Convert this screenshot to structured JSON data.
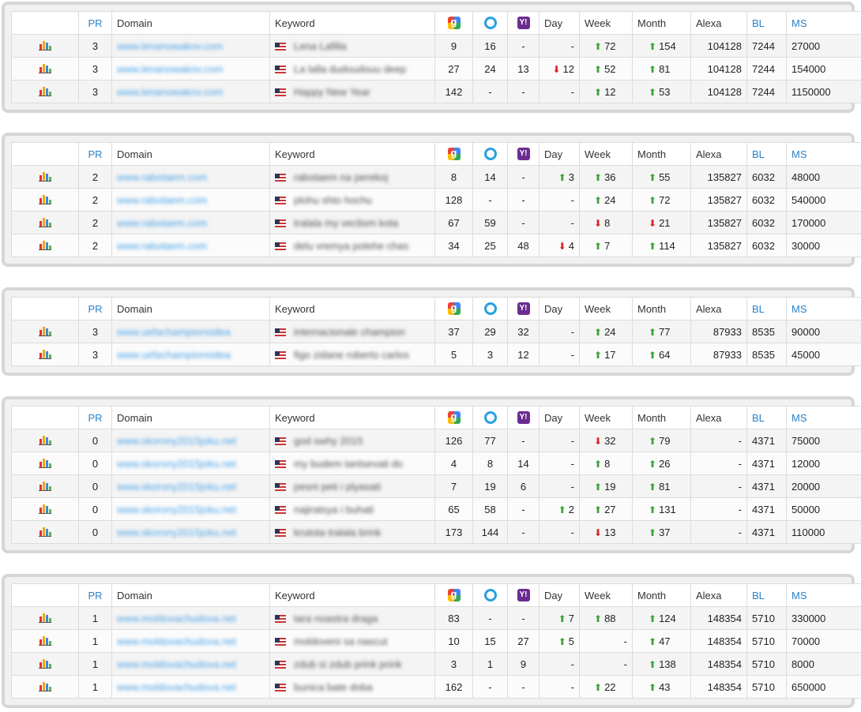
{
  "headers": [
    "",
    "PR",
    "Domain",
    "Keyword",
    "",
    "",
    "",
    "Day",
    "Week",
    "Month",
    "Alexa",
    "BL",
    "MS"
  ],
  "colors": {
    "up": "#3aa335",
    "down": "#d22222",
    "link": "#2a82c8"
  },
  "icons": {
    "google": "google-icon",
    "bing": "bing-icon",
    "yahoo": "yahoo-icon",
    "chart": "bar-chart-icon",
    "flag": "us-flag-icon"
  },
  "groups": [
    {
      "rows": [
        {
          "pr": "3",
          "domain": "www.lenanowakov.com",
          "keyword": "Lena Lafilla",
          "g": "9",
          "b": "16",
          "y": "-",
          "day": "-",
          "day_dir": "",
          "week": "72",
          "week_dir": "up",
          "month": "154",
          "month_dir": "up",
          "alexa": "104128",
          "bl": "7244",
          "ms": "27000"
        },
        {
          "pr": "3",
          "domain": "www.lenanowakov.com",
          "keyword": "La lalla dudoudouu deep",
          "g": "27",
          "b": "24",
          "y": "13",
          "day": "12",
          "day_dir": "down",
          "week": "52",
          "week_dir": "up",
          "month": "81",
          "month_dir": "up",
          "alexa": "104128",
          "bl": "7244",
          "ms": "154000"
        },
        {
          "pr": "3",
          "domain": "www.lenanowakov.com",
          "keyword": "Happy New Year",
          "g": "142",
          "b": "-",
          "y": "-",
          "day": "-",
          "day_dir": "",
          "week": "12",
          "week_dir": "up",
          "month": "53",
          "month_dir": "up",
          "alexa": "104128",
          "bl": "7244",
          "ms": "1150000"
        }
      ]
    },
    {
      "rows": [
        {
          "pr": "2",
          "domain": "www.rabotaem.com",
          "keyword": "rabotaem na perekoj",
          "g": "8",
          "b": "14",
          "y": "-",
          "day": "3",
          "day_dir": "up",
          "week": "36",
          "week_dir": "up",
          "month": "55",
          "month_dir": "up",
          "alexa": "135827",
          "bl": "6032",
          "ms": "48000"
        },
        {
          "pr": "2",
          "domain": "www.rabotaem.com",
          "keyword": "plohu shto hochu",
          "g": "128",
          "b": "-",
          "y": "-",
          "day": "-",
          "day_dir": "",
          "week": "24",
          "week_dir": "up",
          "month": "72",
          "month_dir": "up",
          "alexa": "135827",
          "bl": "6032",
          "ms": "540000"
        },
        {
          "pr": "2",
          "domain": "www.rabotaem.com",
          "keyword": "tralala my vecliom kota",
          "g": "67",
          "b": "59",
          "y": "-",
          "day": "-",
          "day_dir": "",
          "week": "8",
          "week_dir": "down",
          "month": "21",
          "month_dir": "down",
          "alexa": "135827",
          "bl": "6032",
          "ms": "170000"
        },
        {
          "pr": "2",
          "domain": "www.rabotaem.com",
          "keyword": "delu vremya potehe chas",
          "g": "34",
          "b": "25",
          "y": "48",
          "day": "4",
          "day_dir": "down",
          "week": "7",
          "week_dir": "up",
          "month": "114",
          "month_dir": "up",
          "alexa": "135827",
          "bl": "6032",
          "ms": "30000"
        }
      ]
    },
    {
      "rows": [
        {
          "pr": "3",
          "domain": "www.uefachampionsidea",
          "keyword": "internacionale champion",
          "g": "37",
          "b": "29",
          "y": "32",
          "day": "-",
          "day_dir": "",
          "week": "24",
          "week_dir": "up",
          "month": "77",
          "month_dir": "up",
          "alexa": "87933",
          "bl": "8535",
          "ms": "90000"
        },
        {
          "pr": "3",
          "domain": "www.uefachampionsidea",
          "keyword": "figo zidane roberto carlos",
          "g": "5",
          "b": "3",
          "y": "12",
          "day": "-",
          "day_dir": "",
          "week": "17",
          "week_dir": "up",
          "month": "64",
          "month_dir": "up",
          "alexa": "87933",
          "bl": "8535",
          "ms": "45000"
        }
      ]
    },
    {
      "rows": [
        {
          "pr": "0",
          "domain": "www.skorony2015joku.net",
          "keyword": "god swhy 2015",
          "g": "126",
          "b": "77",
          "y": "-",
          "day": "-",
          "day_dir": "",
          "week": "32",
          "week_dir": "down",
          "month": "79",
          "month_dir": "up",
          "alexa": "-",
          "bl": "4371",
          "ms": "75000"
        },
        {
          "pr": "0",
          "domain": "www.skorony2015joku.net",
          "keyword": "my budem tantsevati do",
          "g": "4",
          "b": "8",
          "y": "14",
          "day": "-",
          "day_dir": "",
          "week": "8",
          "week_dir": "up",
          "month": "26",
          "month_dir": "up",
          "alexa": "-",
          "bl": "4371",
          "ms": "12000"
        },
        {
          "pr": "0",
          "domain": "www.skorony2015joku.net",
          "keyword": "pesni peti i plyasati",
          "g": "7",
          "b": "19",
          "y": "6",
          "day": "-",
          "day_dir": "",
          "week": "19",
          "week_dir": "up",
          "month": "81",
          "month_dir": "up",
          "alexa": "-",
          "bl": "4371",
          "ms": "20000"
        },
        {
          "pr": "0",
          "domain": "www.skorony2015joku.net",
          "keyword": "najiratsya i buhati",
          "g": "65",
          "b": "58",
          "y": "-",
          "day": "2",
          "day_dir": "up",
          "week": "27",
          "week_dir": "up",
          "month": "131",
          "month_dir": "up",
          "alexa": "-",
          "bl": "4371",
          "ms": "50000"
        },
        {
          "pr": "0",
          "domain": "www.skorony2015joku.net",
          "keyword": "krutota tralala brink",
          "g": "173",
          "b": "144",
          "y": "-",
          "day": "-",
          "day_dir": "",
          "week": "13",
          "week_dir": "down",
          "month": "37",
          "month_dir": "up",
          "alexa": "-",
          "bl": "4371",
          "ms": "110000"
        }
      ]
    },
    {
      "rows": [
        {
          "pr": "1",
          "domain": "www.moldovachudova.net",
          "keyword": "tara noastra draga",
          "g": "83",
          "b": "-",
          "y": "-",
          "day": "7",
          "day_dir": "up",
          "week": "88",
          "week_dir": "up",
          "month": "124",
          "month_dir": "up",
          "alexa": "148354",
          "bl": "5710",
          "ms": "330000"
        },
        {
          "pr": "1",
          "domain": "www.moldovachudova.net",
          "keyword": "moldoveni sa nascut",
          "g": "10",
          "b": "15",
          "y": "27",
          "day": "5",
          "day_dir": "up",
          "week": "-",
          "week_dir": "",
          "month": "47",
          "month_dir": "up",
          "alexa": "148354",
          "bl": "5710",
          "ms": "70000"
        },
        {
          "pr": "1",
          "domain": "www.moldovachudova.net",
          "keyword": "zdub si zdub prink prink",
          "g": "3",
          "b": "1",
          "y": "9",
          "day": "-",
          "day_dir": "",
          "week": "-",
          "week_dir": "",
          "month": "138",
          "month_dir": "up",
          "alexa": "148354",
          "bl": "5710",
          "ms": "8000"
        },
        {
          "pr": "1",
          "domain": "www.moldovachudova.net",
          "keyword": "bunica bate doba",
          "g": "162",
          "b": "-",
          "y": "-",
          "day": "-",
          "day_dir": "",
          "week": "22",
          "week_dir": "up",
          "month": "43",
          "month_dir": "up",
          "alexa": "148354",
          "bl": "5710",
          "ms": "650000"
        }
      ]
    }
  ]
}
